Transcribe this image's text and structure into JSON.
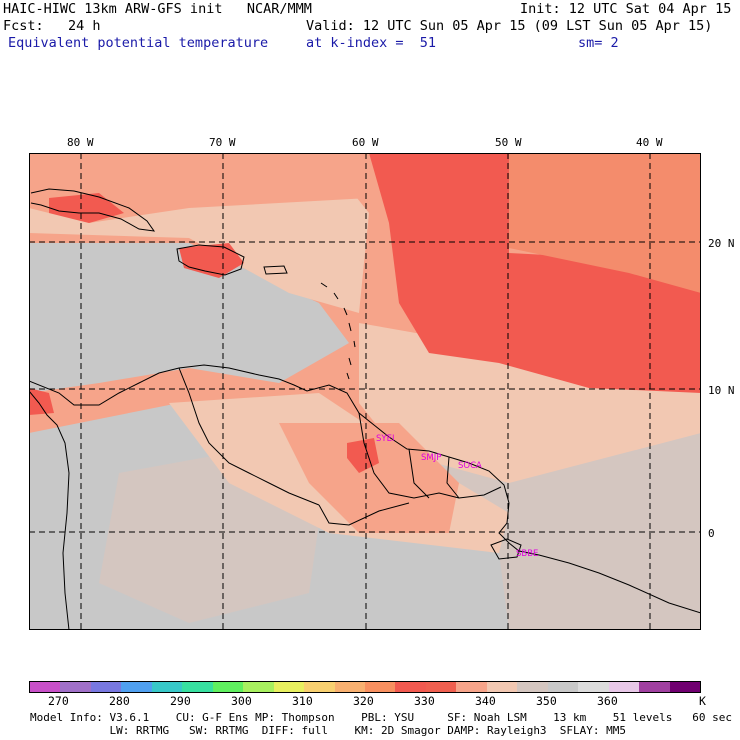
{
  "header": {
    "model_title": "HAIC-HIWC 13km ARW-GFS init   NCAR/MMM",
    "init": "Init: 12 UTC Sat 04 Apr 15",
    "fcst": "Fcst:   24 h",
    "valid": "Valid: 12 UTC Sun 05 Apr 15 (09 LST Sun 05 Apr 15)",
    "field": "Equivalent potential temperature",
    "level": "at k-index =  51",
    "smooth": "sm= 2"
  },
  "map": {
    "lon_labels": [
      "80 W",
      "70 W",
      "60 W",
      "50 W",
      "40 W"
    ],
    "lat_labels": [
      "20 N",
      "10 N",
      "0"
    ],
    "stations": [
      "SYEI",
      "SMJP",
      "SOCA",
      "SBBE"
    ],
    "colors": {
      "c340": "#f6a48a",
      "c345": "#f2c8b2",
      "c350": "#d4c6c0",
      "c355": "#c8c8c8",
      "c325": "#f48c6c",
      "c330": "#f25a50",
      "coast": "#000000",
      "grid": "#000000",
      "station": "#e000e0"
    }
  },
  "colorbar": {
    "colors": [
      "#c850c8",
      "#a070c8",
      "#7878e0",
      "#50a0f0",
      "#38c8c8",
      "#38e0a0",
      "#60f060",
      "#a8f060",
      "#e8f060",
      "#f8d070",
      "#f8b070",
      "#f89060",
      "#f25a50",
      "#f06050",
      "#f6a48a",
      "#f2c8b2",
      "#d4c6c0",
      "#c8c8c8",
      "#dcdcdc",
      "#e8c8e8",
      "#a040a0",
      "#700070"
    ],
    "labels": [
      "270",
      "280",
      "290",
      "300",
      "310",
      "320",
      "330",
      "340",
      "350",
      "360",
      "K"
    ]
  },
  "footer": {
    "line1": "Model Info: V3.6.1    CU: G-F Ens MP: Thompson    PBL: YSU     SF: Noah LSM    13 km    51 levels   60 sec",
    "line2": "            LW: RRTMG   SW: RRTMG  DIFF: full    KM: 2D Smagor DAMP: Rayleigh3  SFLAY: MM5"
  }
}
